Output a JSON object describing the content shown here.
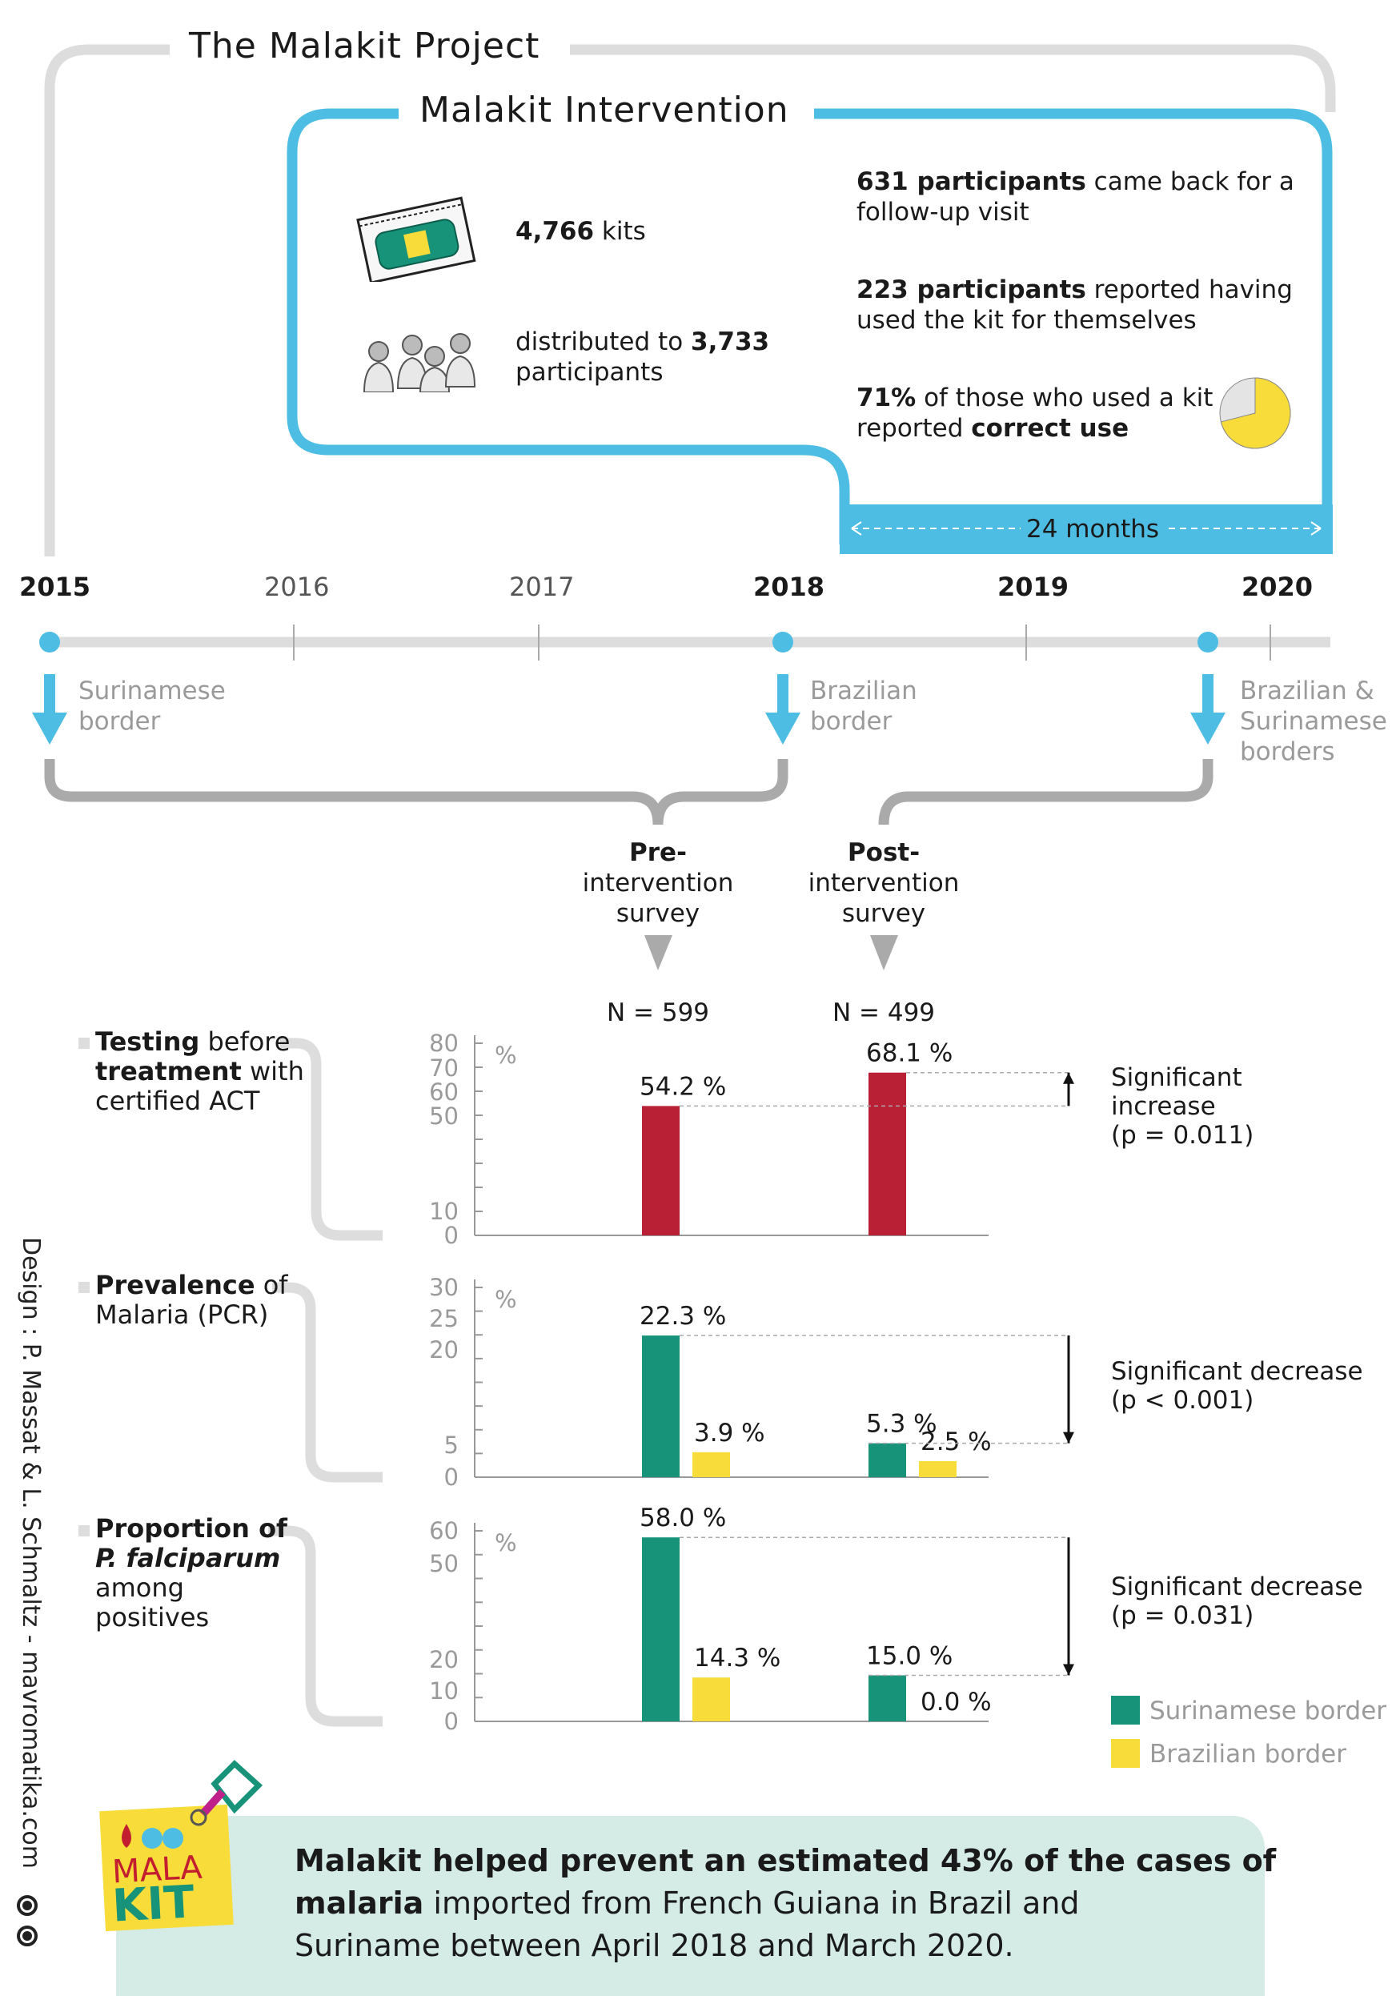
{
  "project_title": "The Malakit Project",
  "intervention_title": "Malakit Intervention",
  "intervention": {
    "kits_num": "4,766",
    "kits_word": "kits",
    "distributed_pre": "distributed to",
    "distributed_num": "3,733",
    "distributed_post": "participants",
    "followup_bold": "631 participants",
    "followup_rest1": "came back for a",
    "followup_rest2": "follow-up visit",
    "used_bold": "223 participants",
    "used_rest1": "reported having",
    "used_rest2": "used the kit for themselves",
    "correct_pct": "71%",
    "correct_rest1": "of those who used a kit",
    "correct_rest2": "reported",
    "correct_bold": "correct use",
    "correct_use_fraction": 0.71,
    "duration": "24 months"
  },
  "timeline": {
    "years": [
      {
        "label": "2015",
        "bold": true
      },
      {
        "label": "2016",
        "bold": false
      },
      {
        "label": "2017",
        "bold": false
      },
      {
        "label": "2018",
        "bold": true
      },
      {
        "label": "2019",
        "bold": true
      },
      {
        "label": "2020",
        "bold": true
      }
    ],
    "events": [
      {
        "line1": "Surinamese",
        "line2": "border",
        "line3": ""
      },
      {
        "line1": "Brazilian",
        "line2": "border",
        "line3": ""
      },
      {
        "line1": "Brazilian &",
        "line2": "Surinamese",
        "line3": "borders"
      }
    ]
  },
  "surveys": {
    "pre": {
      "line1": "Pre-",
      "line2": "intervention",
      "line3": "survey",
      "n": "N = 599"
    },
    "post": {
      "line1": "Post-",
      "line2": "intervention",
      "line3": "survey",
      "n": "N = 499"
    }
  },
  "colors": {
    "accent_blue": "#4dbde3",
    "timeline_grey": "#dddddd",
    "testing_red": "#b91f35",
    "suriname_green": "#17937a",
    "brazil_yellow": "#f8dc3a",
    "summary_bg": "#d4ebe6"
  },
  "chart_data": [
    {
      "type": "bar",
      "heading_bold1": "Testing",
      "heading_rest1": " before",
      "heading_bold2": "treatment",
      "heading_rest2": " with",
      "heading_rest3": "certified ACT",
      "ylabel": "%",
      "yticks": [
        0,
        10,
        50,
        60,
        70,
        80
      ],
      "categories": [
        "Pre-intervention survey",
        "Post-intervention survey"
      ],
      "series": [
        {
          "values": [
            54.2,
            68.1
          ],
          "labels": [
            "54.2 %",
            "68.1 %"
          ],
          "color": "#b91f35"
        }
      ],
      "significance": {
        "line1": "Significant",
        "line2": "increase",
        "line3": "(p = 0.011)",
        "direction": "up"
      }
    },
    {
      "type": "bar",
      "heading_bold1": "Prevalence",
      "heading_rest1": " of",
      "heading_rest2": "Malaria (PCR)",
      "ylabel": "%",
      "yticks": [
        0,
        5,
        20,
        25,
        30
      ],
      "categories": [
        "Pre-intervention survey",
        "Post-intervention survey"
      ],
      "series": [
        {
          "name": "Surinamese border",
          "values": [
            22.3,
            5.3
          ],
          "labels": [
            "22.3 %",
            "5.3 %"
          ],
          "color": "#17937a"
        },
        {
          "name": "Brazilian border",
          "values": [
            3.9,
            2.5
          ],
          "labels": [
            "3.9 %",
            "2.5 %"
          ],
          "color": "#f8dc3a"
        }
      ],
      "significance": {
        "line1": "Significant decrease",
        "line2": "(p < 0.001)",
        "direction": "down"
      }
    },
    {
      "type": "bar",
      "heading_bold1": "Proportion of",
      "heading_italic": "P. falciparum",
      "heading_rest2": "among",
      "heading_rest3": "positives",
      "ylabel": "%",
      "yticks": [
        0,
        10,
        20,
        50,
        60
      ],
      "categories": [
        "Pre-intervention survey",
        "Post-intervention survey"
      ],
      "series": [
        {
          "name": "Surinamese border",
          "values": [
            58.0,
            15.0
          ],
          "labels": [
            "58.0 %",
            "15.0 %"
          ],
          "color": "#17937a"
        },
        {
          "name": "Brazilian border",
          "values": [
            14.3,
            0.0
          ],
          "labels": [
            "14.3 %",
            "0.0 %"
          ],
          "color": "#f8dc3a"
        }
      ],
      "significance": {
        "line1": "Significant decrease",
        "line2": "(p = 0.031)",
        "direction": "down"
      }
    }
  ],
  "legend": {
    "suriname": "Surinamese border",
    "brazil": "Brazilian border"
  },
  "summary": {
    "bold1": "Malakit helped prevent an estimated 43% of the cases of",
    "bold2": "malaria",
    "rest2": " imported from French Guiana in Brazil and",
    "line3": "Suriname between April 2018  and March 2020."
  },
  "logo_text1": "MALA",
  "logo_text2": "KIT",
  "credit": "Design : P. Massat & L. Schmaltz - mavromatika.com"
}
